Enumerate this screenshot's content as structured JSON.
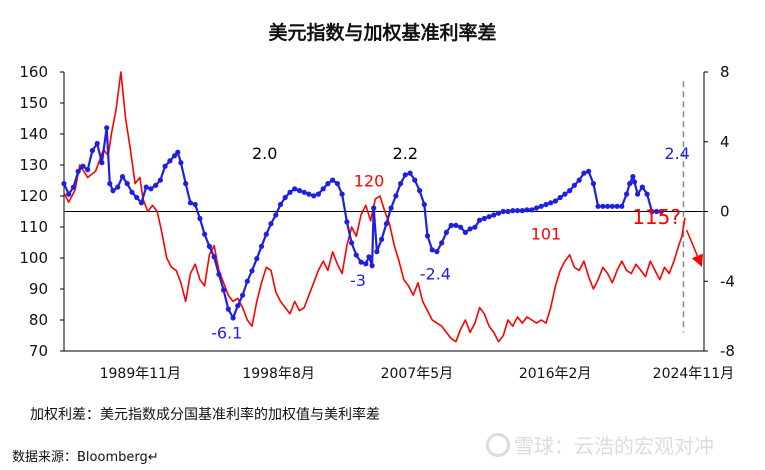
{
  "chart_data": {
    "type": "line",
    "title": "美元指数与加权基准利率差",
    "x_tick_labels": [
      "1989年11月",
      "1998年8月",
      "2007年5月",
      "2016年2月",
      "2024年11月"
    ],
    "x_tick_dates": [
      1989.83,
      1998.58,
      2007.33,
      2016.08,
      2024.83
    ],
    "xlim": [
      1985.0,
      2025.5
    ],
    "y_left": {
      "ticks": [
        70,
        80,
        90,
        100,
        110,
        120,
        130,
        140,
        150,
        160
      ],
      "ylim": [
        70,
        160
      ]
    },
    "y_right": {
      "ticks": [
        -8,
        -4,
        0,
        4,
        8
      ],
      "ylim": [
        -8,
        8
      ]
    },
    "zero_line_right": 0,
    "vertical_dashed_line_x": 2024.2,
    "series": [
      {
        "axis": "left",
        "color": "#ff0000",
        "points": [
          [
            1985.0,
            121
          ],
          [
            1985.3,
            118
          ],
          [
            1985.7,
            122
          ],
          [
            1986.0,
            130
          ],
          [
            1986.5,
            126
          ],
          [
            1987.0,
            128
          ],
          [
            1987.5,
            135
          ],
          [
            1987.8,
            133
          ],
          [
            1988.0,
            140
          ],
          [
            1988.3,
            148
          ],
          [
            1988.6,
            160
          ],
          [
            1988.9,
            145
          ],
          [
            1989.2,
            135
          ],
          [
            1989.5,
            124
          ],
          [
            1989.8,
            126
          ],
          [
            1990.0,
            119
          ],
          [
            1990.3,
            115
          ],
          [
            1990.6,
            117
          ],
          [
            1990.9,
            115
          ],
          [
            1991.2,
            108
          ],
          [
            1991.5,
            100
          ],
          [
            1991.8,
            97
          ],
          [
            1992.1,
            96
          ],
          [
            1992.4,
            92
          ],
          [
            1992.7,
            86
          ],
          [
            1993.0,
            95
          ],
          [
            1993.3,
            98
          ],
          [
            1993.6,
            93
          ],
          [
            1993.9,
            91
          ],
          [
            1994.2,
            101
          ],
          [
            1994.5,
            104
          ],
          [
            1994.8,
            96
          ],
          [
            1995.1,
            92
          ],
          [
            1995.4,
            88
          ],
          [
            1995.7,
            86
          ],
          [
            1996.0,
            87
          ],
          [
            1996.3,
            84
          ],
          [
            1996.6,
            80
          ],
          [
            1996.9,
            78
          ],
          [
            1997.2,
            86
          ],
          [
            1997.5,
            92
          ],
          [
            1997.8,
            97
          ],
          [
            1998.1,
            96
          ],
          [
            1998.4,
            89
          ],
          [
            1998.7,
            86
          ],
          [
            1999.0,
            84
          ],
          [
            1999.3,
            82
          ],
          [
            1999.6,
            86
          ],
          [
            1999.9,
            83
          ],
          [
            2000.2,
            84
          ],
          [
            2000.5,
            88
          ],
          [
            2000.8,
            92
          ],
          [
            2001.1,
            96
          ],
          [
            2001.4,
            99
          ],
          [
            2001.7,
            96
          ],
          [
            2002.0,
            102
          ],
          [
            2002.3,
            98
          ],
          [
            2002.6,
            95
          ],
          [
            2002.9,
            104
          ],
          [
            2003.2,
            110
          ],
          [
            2003.5,
            107
          ],
          [
            2003.8,
            114
          ],
          [
            2004.1,
            117
          ],
          [
            2004.4,
            112
          ],
          [
            2004.7,
            119
          ],
          [
            2005.0,
            120
          ],
          [
            2005.3,
            115
          ],
          [
            2005.6,
            111
          ],
          [
            2005.9,
            104
          ],
          [
            2006.2,
            99
          ],
          [
            2006.5,
            93
          ],
          [
            2006.8,
            91
          ],
          [
            2007.1,
            88
          ],
          [
            2007.4,
            92
          ],
          [
            2007.7,
            86
          ],
          [
            2008.0,
            83
          ],
          [
            2008.3,
            80
          ],
          [
            2008.6,
            79
          ],
          [
            2008.9,
            78
          ],
          [
            2009.2,
            76
          ],
          [
            2009.5,
            74
          ],
          [
            2009.8,
            73
          ],
          [
            2010.1,
            77
          ],
          [
            2010.4,
            80
          ],
          [
            2010.7,
            76
          ],
          [
            2011.0,
            79
          ],
          [
            2011.3,
            84
          ],
          [
            2011.6,
            82
          ],
          [
            2011.9,
            78
          ],
          [
            2012.2,
            76
          ],
          [
            2012.5,
            73
          ],
          [
            2012.8,
            75
          ],
          [
            2013.1,
            80
          ],
          [
            2013.4,
            78
          ],
          [
            2013.7,
            81
          ],
          [
            2014.0,
            79
          ],
          [
            2014.3,
            81
          ],
          [
            2014.6,
            80
          ],
          [
            2014.9,
            79
          ],
          [
            2015.2,
            80
          ],
          [
            2015.5,
            79
          ],
          [
            2015.8,
            84
          ],
          [
            2016.1,
            91
          ],
          [
            2016.4,
            96
          ],
          [
            2016.7,
            99
          ],
          [
            2017.0,
            101
          ],
          [
            2017.3,
            97
          ],
          [
            2017.6,
            96
          ],
          [
            2017.9,
            99
          ],
          [
            2018.2,
            94
          ],
          [
            2018.5,
            90
          ],
          [
            2018.8,
            93
          ],
          [
            2019.1,
            97
          ],
          [
            2019.4,
            95
          ],
          [
            2019.7,
            92
          ],
          [
            2020.0,
            96
          ],
          [
            2020.3,
            99
          ],
          [
            2020.6,
            96
          ],
          [
            2020.9,
            95
          ],
          [
            2021.2,
            98
          ],
          [
            2021.5,
            96
          ],
          [
            2021.8,
            94
          ],
          [
            2022.1,
            99
          ],
          [
            2022.4,
            96
          ],
          [
            2022.7,
            93
          ],
          [
            2023.0,
            97
          ],
          [
            2023.3,
            95
          ],
          [
            2023.6,
            99
          ],
          [
            2023.9,
            104
          ],
          [
            2024.1,
            107
          ],
          [
            2024.3,
            113
          ]
        ]
      },
      {
        "axis": "right",
        "color": "#1f1fe0",
        "points": [
          [
            1985.0,
            1.6
          ],
          [
            1985.3,
            1.0
          ],
          [
            1985.6,
            1.4
          ],
          [
            1985.9,
            2.3
          ],
          [
            1986.2,
            2.6
          ],
          [
            1986.5,
            2.4
          ],
          [
            1986.8,
            3.5
          ],
          [
            1987.1,
            3.9
          ],
          [
            1987.4,
            2.8
          ],
          [
            1987.7,
            4.8
          ],
          [
            1987.9,
            1.6
          ],
          [
            1988.1,
            1.2
          ],
          [
            1988.4,
            1.4
          ],
          [
            1988.7,
            2.0
          ],
          [
            1989.0,
            1.6
          ],
          [
            1989.3,
            1.1
          ],
          [
            1989.6,
            0.8
          ],
          [
            1989.9,
            0.5
          ],
          [
            1990.2,
            1.4
          ],
          [
            1990.5,
            1.3
          ],
          [
            1990.8,
            1.5
          ],
          [
            1991.1,
            1.8
          ],
          [
            1991.4,
            2.6
          ],
          [
            1991.7,
            2.9
          ],
          [
            1992.0,
            3.2
          ],
          [
            1992.2,
            3.4
          ],
          [
            1992.4,
            2.8
          ],
          [
            1992.7,
            1.6
          ],
          [
            1993.0,
            0.5
          ],
          [
            1993.3,
            0.4
          ],
          [
            1993.6,
            -0.4
          ],
          [
            1993.9,
            -1.3
          ],
          [
            1994.2,
            -2.0
          ],
          [
            1994.5,
            -2.6
          ],
          [
            1994.8,
            -3.6
          ],
          [
            1995.1,
            -4.5
          ],
          [
            1995.4,
            -5.6
          ],
          [
            1995.7,
            -6.1
          ],
          [
            1996.0,
            -5.4
          ],
          [
            1996.3,
            -4.8
          ],
          [
            1996.6,
            -4.0
          ],
          [
            1996.9,
            -3.4
          ],
          [
            1997.2,
            -2.7
          ],
          [
            1997.5,
            -2.0
          ],
          [
            1997.8,
            -1.3
          ],
          [
            1998.1,
            -0.7
          ],
          [
            1998.4,
            -0.2
          ],
          [
            1998.7,
            0.4
          ],
          [
            1999.0,
            0.8
          ],
          [
            1999.3,
            1.1
          ],
          [
            1999.6,
            1.3
          ],
          [
            1999.9,
            1.2
          ],
          [
            2000.2,
            1.1
          ],
          [
            2000.5,
            1.0
          ],
          [
            2000.8,
            0.9
          ],
          [
            2001.1,
            1.0
          ],
          [
            2001.4,
            1.3
          ],
          [
            2001.7,
            1.6
          ],
          [
            2002.0,
            1.8
          ],
          [
            2002.3,
            1.6
          ],
          [
            2002.6,
            1.0
          ],
          [
            2002.9,
            -0.6
          ],
          [
            2003.2,
            -1.8
          ],
          [
            2003.5,
            -2.5
          ],
          [
            2003.8,
            -2.9
          ],
          [
            2004.1,
            -3.0
          ],
          [
            2004.3,
            -2.6
          ],
          [
            2004.5,
            -3.1
          ],
          [
            2004.6,
            0.2
          ],
          [
            2004.8,
            -2.3
          ],
          [
            2005.1,
            -1.6
          ],
          [
            2005.4,
            -0.7
          ],
          [
            2005.7,
            0.2
          ],
          [
            2006.0,
            0.9
          ],
          [
            2006.3,
            1.6
          ],
          [
            2006.6,
            2.1
          ],
          [
            2006.9,
            2.2
          ],
          [
            2007.2,
            1.8
          ],
          [
            2007.5,
            1.2
          ],
          [
            2007.8,
            0.4
          ],
          [
            2008.0,
            -1.4
          ],
          [
            2008.3,
            -2.2
          ],
          [
            2008.6,
            -2.3
          ],
          [
            2008.9,
            -1.8
          ],
          [
            2009.2,
            -1.2
          ],
          [
            2009.5,
            -0.8
          ],
          [
            2009.8,
            -0.8
          ],
          [
            2010.1,
            -0.9
          ],
          [
            2010.4,
            -1.2
          ],
          [
            2010.7,
            -1.0
          ],
          [
            2011.0,
            -0.9
          ],
          [
            2011.3,
            -0.5
          ],
          [
            2011.6,
            -0.4
          ],
          [
            2011.9,
            -0.3
          ],
          [
            2012.2,
            -0.2
          ],
          [
            2012.5,
            -0.1
          ],
          [
            2012.8,
            0.0
          ],
          [
            2013.1,
            0.0
          ],
          [
            2013.4,
            0.05
          ],
          [
            2013.7,
            0.05
          ],
          [
            2014.0,
            0.05
          ],
          [
            2014.3,
            0.1
          ],
          [
            2014.6,
            0.1
          ],
          [
            2014.9,
            0.2
          ],
          [
            2015.2,
            0.3
          ],
          [
            2015.5,
            0.4
          ],
          [
            2015.8,
            0.5
          ],
          [
            2016.1,
            0.6
          ],
          [
            2016.4,
            0.8
          ],
          [
            2016.7,
            1.0
          ],
          [
            2017.0,
            1.2
          ],
          [
            2017.3,
            1.5
          ],
          [
            2017.6,
            1.8
          ],
          [
            2017.9,
            2.2
          ],
          [
            2018.2,
            2.3
          ],
          [
            2018.5,
            1.6
          ],
          [
            2018.8,
            0.3
          ],
          [
            2019.1,
            0.3
          ],
          [
            2019.4,
            0.3
          ],
          [
            2019.7,
            0.3
          ],
          [
            2020.0,
            0.3
          ],
          [
            2020.3,
            0.3
          ],
          [
            2020.6,
            1.0
          ],
          [
            2020.8,
            1.6
          ],
          [
            2021.0,
            2.0
          ],
          [
            2021.1,
            1.7
          ],
          [
            2021.3,
            1.0
          ],
          [
            2021.6,
            1.4
          ],
          [
            2021.9,
            1.0
          ],
          [
            2022.2,
            0.0
          ],
          [
            2022.5,
            0.0
          ],
          [
            2022.8,
            0.0
          ]
        ]
      }
    ],
    "annotations": [
      {
        "text": "2.0",
        "x": 1997.7,
        "y_left": 132,
        "color": "#000000"
      },
      {
        "text": "2.2",
        "x": 2006.6,
        "y_left": 132,
        "color": "#000000"
      },
      {
        "text": "2.4",
        "x": 2023.8,
        "y_left": 132,
        "color": "#1f1fe0"
      },
      {
        "text": "120",
        "x": 2004.3,
        "y_left": 123,
        "color": "#ff0000"
      },
      {
        "text": "101",
        "x": 2015.5,
        "y_left": 106,
        "color": "#ff0000"
      },
      {
        "text": "115?",
        "x": 2022.5,
        "y_left": 111,
        "color": "#ff0000",
        "size": "large"
      },
      {
        "text": "-3",
        "x": 2003.6,
        "y_left": 91,
        "color": "#1f1fe0"
      },
      {
        "text": "-2.4",
        "x": 2008.5,
        "y_left": 93,
        "color": "#1f1fe0"
      },
      {
        "text": "-6.1",
        "x": 1995.3,
        "y_left": 74,
        "color": "#1f1fe0"
      }
    ]
  },
  "note": "加权利差：美元指数成分国基准利率的加权值与美利率差",
  "source": "数据来源：Bloomberg↵",
  "watermark": "雪球：云浩的宏观对冲"
}
